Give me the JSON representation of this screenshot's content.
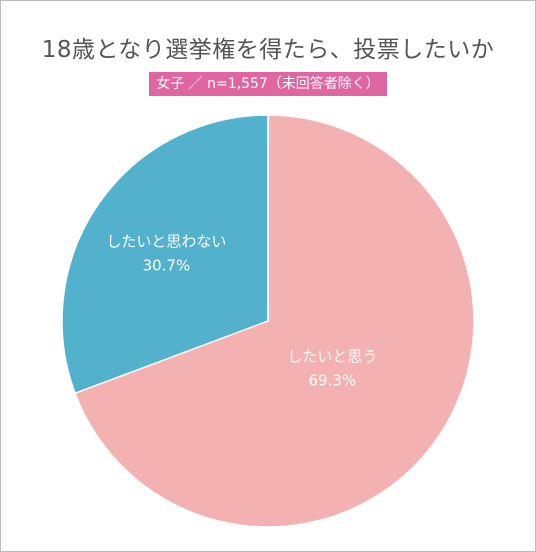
{
  "title": "18歳となり選挙権を得たら、投票したいか",
  "subtitle_badge": "女子 ／ n=1,557（未回答者除く）",
  "colors": {
    "background": "#ffffff",
    "border": "#bcbcbc",
    "badge": "#e066a2",
    "title_text": "#555555"
  },
  "chart_data": {
    "type": "pie",
    "title": "18歳となり選挙権を得たら、投票したいか",
    "subtitle": "女子 ／ n=1,557（未回答者除く）",
    "slices": [
      {
        "label": "したいと思う",
        "value": 69.3,
        "value_label": "69.3%",
        "color": "#f4b1b1"
      },
      {
        "label": "したいと思わない",
        "value": 30.7,
        "value_label": "30.7%",
        "color": "#52b2cd"
      }
    ],
    "start_angle": "12 o'clock",
    "direction": "clockwise",
    "legend": "none"
  }
}
